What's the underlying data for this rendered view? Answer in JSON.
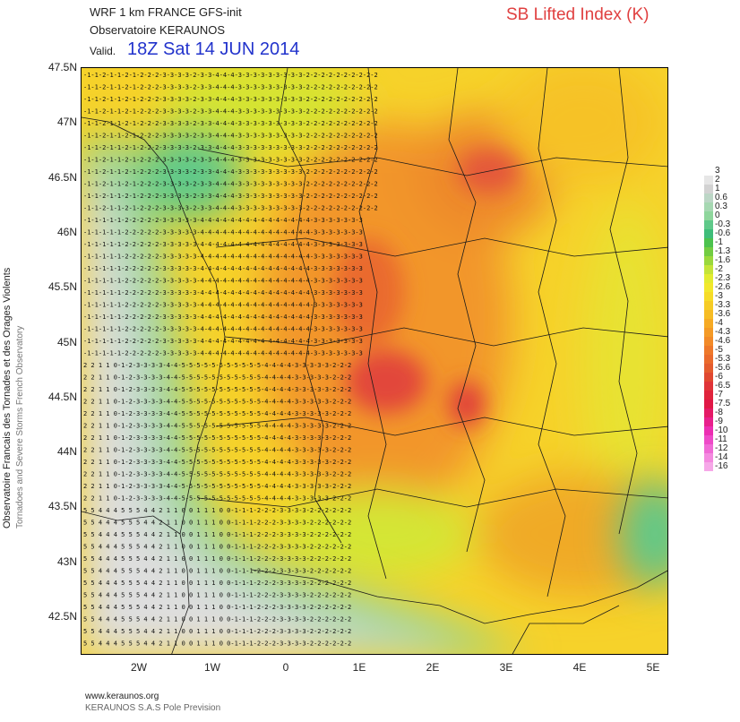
{
  "header": {
    "model": "WRF 1 km FRANCE   GFS-init",
    "organization": "Observatoire KERAUNOS",
    "valid_label": "Valid.",
    "valid_time": "18Z Sat 14 JUN 2014",
    "parameter": "SB Lifted Index (K)"
  },
  "side_text": {
    "line1": "Observatoire Francais des Tornades et des Orages Violents",
    "line2": "Tornadoes and Severe Storms French Observatory"
  },
  "axes": {
    "lat_labels": [
      "47.5N",
      "47N",
      "46.5N",
      "46N",
      "45.5N",
      "45N",
      "44.5N",
      "44N",
      "43.5N",
      "43N",
      "42.5N"
    ],
    "lon_labels": [
      "2W",
      "1W",
      "0",
      "1E",
      "2E",
      "3E",
      "4E",
      "5E"
    ]
  },
  "legend": {
    "labels": [
      "3",
      "2",
      "1",
      "0.6",
      "0.3",
      "0",
      "-0.3",
      "-0.6",
      "-1",
      "-1.3",
      "-1.6",
      "-2",
      "-2.3",
      "-2.6",
      "-3",
      "-3.3",
      "-3.6",
      "-4",
      "-4.3",
      "-4.6",
      "-5",
      "-5.3",
      "-5.6",
      "-6",
      "-6.5",
      "-7",
      "-7.5",
      "-8",
      "-9",
      "-10",
      "-11",
      "-12",
      "-14",
      "-16"
    ],
    "colors": [
      "#ffffff",
      "#e6e6e6",
      "#d2d2d2",
      "#bcd6c6",
      "#a6d8b2",
      "#8ed69c",
      "#5fc98a",
      "#3fbd7a",
      "#4cc24e",
      "#72cc42",
      "#9ad83c",
      "#c4e438",
      "#e2ec30",
      "#f2e82c",
      "#f6dc28",
      "#f6cc26",
      "#f6bc24",
      "#f6aa24",
      "#f49a26",
      "#f28a28",
      "#ee782a",
      "#ea6a2c",
      "#e45c2e",
      "#e04830",
      "#e03438",
      "#e0243c",
      "#e01846",
      "#e41a66",
      "#e8208c",
      "#ec2eb2",
      "#ee4ac8",
      "#f06ad6",
      "#f48ae0",
      "#f6a8e8"
    ]
  },
  "grid_values": {
    "row_top": "-1-1-2-1-1-2-1-2-2-2-3-3-3-3-2-3-3-4-4-4-3-3-3-3-3-3-3-3-3-2-2-2-2-2-2-2-2-2-2",
    "row_north": "-1-1-1-1-1-2-2-2-2-2-3-3-3-3-3-4-4-4-4-4-4-4-4-4-4-4-4-4-4-4-3-3-3-3-3-3-3",
    "row_mid": "2 2 1 1 0-1-2-3-3-3-3-4-4-5-5-5-5-5-5-5-5-5-5-5-4-4-4-4-3-3-3-3-3-2-2-2",
    "row_south": "5 5 4 4 4 5 5 5 4 4 2 1 1 0 0 1 1 1 0 0-1-1-1-2-2-2-3-3-3-3-2-2-2-2-2-2"
  },
  "footer": {
    "url": "www.keraunos.org",
    "credit": "KERAUNOS S.A.S Pole Prevision"
  }
}
